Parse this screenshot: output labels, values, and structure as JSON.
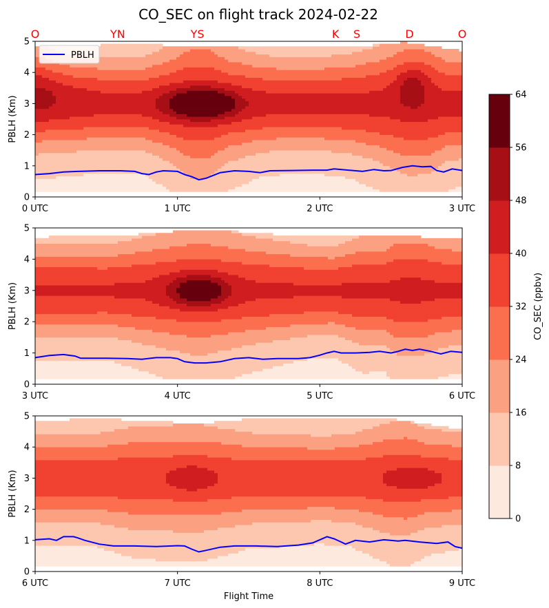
{
  "chart_data": {
    "type": "contour",
    "title": "CO_SEC on flight track 2024-02-22",
    "xlabel": "Flight Time",
    "ylabel": "PBLH (Km)",
    "legend": {
      "entries": [
        "PBLH"
      ],
      "placement": "top-left"
    },
    "location_markers": [
      {
        "label": "O",
        "x": 0.0
      },
      {
        "label": "YN",
        "x": 0.58
      },
      {
        "label": "YS",
        "x": 1.14
      },
      {
        "label": "K",
        "x": 2.11
      },
      {
        "label": "S",
        "x": 2.26
      },
      {
        "label": "D",
        "x": 2.63
      },
      {
        "label": "O",
        "x": 3.0
      }
    ],
    "colorbar": {
      "label": "CO_SEC (ppbv)",
      "levels": [
        0,
        8,
        16,
        24,
        32,
        40,
        48,
        56,
        64
      ],
      "colors": [
        "#fee9df",
        "#fdc7af",
        "#fca082",
        "#fb6e4e",
        "#f14130",
        "#d01d1f",
        "#a60f15",
        "#67000d"
      ]
    },
    "panels": [
      {
        "xlim": [
          0,
          3
        ],
        "ylim": [
          0,
          5
        ],
        "xticks": [
          {
            "v": 0,
            "label": "0 UTC"
          },
          {
            "v": 1,
            "label": "1 UTC"
          },
          {
            "v": 2,
            "label": "2 UTC"
          },
          {
            "v": 3,
            "label": "3 UTC"
          }
        ],
        "yticks": [
          0,
          1,
          2,
          3,
          4,
          5
        ],
        "baseline": 3.0,
        "bottom": 0.15,
        "band": [
          [
            0,
            4.8
          ],
          [
            0.6,
            4.9
          ],
          [
            1.2,
            4.85
          ],
          [
            2.3,
            4.85
          ],
          [
            2.6,
            4.97
          ],
          [
            3.0,
            4.7
          ]
        ],
        "bump": [
          [
            0,
            0.7
          ],
          [
            0.5,
            0.5
          ],
          [
            0.75,
            0.5
          ],
          [
            0.95,
            1.05
          ],
          [
            1.1,
            1.75
          ],
          [
            1.22,
            1.75
          ],
          [
            1.35,
            1.05
          ],
          [
            1.6,
            0.6
          ],
          [
            1.9,
            0.5
          ],
          [
            2.2,
            0.65
          ],
          [
            2.4,
            1.0
          ],
          [
            2.62,
            1.65
          ],
          [
            2.75,
            1.6
          ],
          [
            2.9,
            1.0
          ],
          [
            3.0,
            0.9
          ]
        ],
        "hotspots": [
          {
            "x": 0.02,
            "y": 4.0,
            "a": 6,
            "sx": 0.09,
            "sy": 0.9
          },
          {
            "x": 0.03,
            "y": 3.3,
            "a": 6,
            "sx": 0.22,
            "sy": 0.6
          },
          {
            "x": 1.17,
            "y": 3.0,
            "a": 36,
            "sx": 0.17,
            "sy": 0.33
          },
          {
            "x": 2.65,
            "y": 3.5,
            "a": 14,
            "sx": 0.08,
            "sy": 0.5
          }
        ],
        "pblh": [
          [
            0,
            0.72
          ],
          [
            0.1,
            0.75
          ],
          [
            0.2,
            0.8
          ],
          [
            0.3,
            0.82
          ],
          [
            0.45,
            0.84
          ],
          [
            0.6,
            0.84
          ],
          [
            0.7,
            0.82
          ],
          [
            0.75,
            0.75
          ],
          [
            0.8,
            0.72
          ],
          [
            0.85,
            0.8
          ],
          [
            0.9,
            0.84
          ],
          [
            1.0,
            0.82
          ],
          [
            1.05,
            0.72
          ],
          [
            1.1,
            0.65
          ],
          [
            1.15,
            0.55
          ],
          [
            1.2,
            0.6
          ],
          [
            1.3,
            0.78
          ],
          [
            1.4,
            0.84
          ],
          [
            1.5,
            0.82
          ],
          [
            1.58,
            0.78
          ],
          [
            1.65,
            0.84
          ],
          [
            1.8,
            0.85
          ],
          [
            1.95,
            0.86
          ],
          [
            2.05,
            0.86
          ],
          [
            2.1,
            0.9
          ],
          [
            2.2,
            0.86
          ],
          [
            2.3,
            0.82
          ],
          [
            2.38,
            0.88
          ],
          [
            2.45,
            0.84
          ],
          [
            2.5,
            0.85
          ],
          [
            2.58,
            0.95
          ],
          [
            2.65,
            1.0
          ],
          [
            2.72,
            0.97
          ],
          [
            2.78,
            0.98
          ],
          [
            2.82,
            0.85
          ],
          [
            2.87,
            0.8
          ],
          [
            2.93,
            0.9
          ],
          [
            3.0,
            0.85
          ]
        ]
      },
      {
        "xlim": [
          3,
          6
        ],
        "ylim": [
          0,
          5
        ],
        "xticks": [
          {
            "v": 3,
            "label": "3 UTC"
          },
          {
            "v": 4,
            "label": "4 UTC"
          },
          {
            "v": 5,
            "label": "5 UTC"
          },
          {
            "v": 6,
            "label": "6 UTC"
          }
        ],
        "yticks": [
          0,
          1,
          2,
          3,
          4,
          5
        ],
        "baseline": 2.9,
        "bottom": 0.15,
        "band": [
          [
            3,
            4.7
          ],
          [
            3.6,
            4.75
          ],
          [
            4.2,
            4.95
          ],
          [
            4.8,
            4.75
          ],
          [
            5.5,
            4.75
          ],
          [
            6,
            4.65
          ]
        ],
        "bump": [
          [
            3,
            0.55
          ],
          [
            3.5,
            0.5
          ],
          [
            3.8,
            0.9
          ],
          [
            4.15,
            1.4
          ],
          [
            4.5,
            0.9
          ],
          [
            4.9,
            0.5
          ],
          [
            5.1,
            0.45
          ],
          [
            5.3,
            0.9
          ],
          [
            5.45,
            0.85
          ],
          [
            5.55,
            1.4
          ],
          [
            5.7,
            1.4
          ],
          [
            5.85,
            1.0
          ],
          [
            6,
            0.9
          ]
        ],
        "hotspots": [
          {
            "x": 4.15,
            "y": 3.0,
            "a": 28,
            "sx": 0.14,
            "sy": 0.35
          },
          {
            "x": 5.65,
            "y": 3.0,
            "a": 5,
            "sx": 0.08,
            "sy": 0.2
          }
        ],
        "pblh": [
          [
            3,
            0.85
          ],
          [
            3.1,
            0.92
          ],
          [
            3.2,
            0.95
          ],
          [
            3.28,
            0.9
          ],
          [
            3.32,
            0.83
          ],
          [
            3.5,
            0.83
          ],
          [
            3.65,
            0.82
          ],
          [
            3.75,
            0.8
          ],
          [
            3.85,
            0.85
          ],
          [
            3.95,
            0.85
          ],
          [
            4.0,
            0.82
          ],
          [
            4.05,
            0.72
          ],
          [
            4.12,
            0.68
          ],
          [
            4.2,
            0.68
          ],
          [
            4.3,
            0.72
          ],
          [
            4.4,
            0.82
          ],
          [
            4.5,
            0.85
          ],
          [
            4.6,
            0.8
          ],
          [
            4.7,
            0.82
          ],
          [
            4.85,
            0.82
          ],
          [
            4.93,
            0.85
          ],
          [
            5.0,
            0.93
          ],
          [
            5.05,
            1.0
          ],
          [
            5.1,
            1.05
          ],
          [
            5.15,
            1.0
          ],
          [
            5.25,
            1.0
          ],
          [
            5.35,
            1.02
          ],
          [
            5.42,
            1.05
          ],
          [
            5.5,
            1.0
          ],
          [
            5.55,
            1.05
          ],
          [
            5.6,
            1.12
          ],
          [
            5.65,
            1.08
          ],
          [
            5.7,
            1.12
          ],
          [
            5.78,
            1.05
          ],
          [
            5.85,
            0.97
          ],
          [
            5.92,
            1.05
          ],
          [
            6.0,
            1.02
          ]
        ]
      },
      {
        "xlim": [
          6,
          9
        ],
        "ylim": [
          0,
          5
        ],
        "xticks": [
          {
            "v": 6,
            "label": "6 UTC"
          },
          {
            "v": 7,
            "label": "7 UTC"
          },
          {
            "v": 8,
            "label": "8 UTC"
          },
          {
            "v": 9,
            "label": "9 UTC"
          }
        ],
        "yticks": [
          0,
          1,
          2,
          3,
          4,
          5
        ],
        "baseline": 2.6,
        "bottom": 0.15,
        "band": [
          [
            6,
            4.85
          ],
          [
            6.5,
            4.9
          ],
          [
            7.15,
            4.75
          ],
          [
            7.5,
            4.9
          ],
          [
            8.5,
            4.9
          ],
          [
            9,
            4.55
          ]
        ],
        "bump": [
          [
            6,
            0.5
          ],
          [
            6.4,
            0.5
          ],
          [
            6.7,
            0.9
          ],
          [
            7.15,
            1.0
          ],
          [
            7.5,
            0.6
          ],
          [
            8,
            0.45
          ],
          [
            8.2,
            0.5
          ],
          [
            8.5,
            1.1
          ],
          [
            8.6,
            1.2
          ],
          [
            8.75,
            0.8
          ],
          [
            9,
            0.6
          ]
        ],
        "hotspots": [
          {
            "x": 7.1,
            "y": 3.0,
            "a": 10,
            "sx": 0.12,
            "sy": 0.3
          },
          {
            "x": 8.65,
            "y": 3.0,
            "a": 8,
            "sx": 0.15,
            "sy": 0.3
          }
        ],
        "pblh": [
          [
            6,
            1.02
          ],
          [
            6.1,
            1.05
          ],
          [
            6.15,
            1.0
          ],
          [
            6.2,
            1.12
          ],
          [
            6.27,
            1.12
          ],
          [
            6.3,
            1.08
          ],
          [
            6.35,
            1.0
          ],
          [
            6.45,
            0.88
          ],
          [
            6.55,
            0.82
          ],
          [
            6.7,
            0.82
          ],
          [
            6.85,
            0.8
          ],
          [
            7.0,
            0.83
          ],
          [
            7.05,
            0.82
          ],
          [
            7.1,
            0.72
          ],
          [
            7.15,
            0.63
          ],
          [
            7.2,
            0.68
          ],
          [
            7.3,
            0.78
          ],
          [
            7.4,
            0.82
          ],
          [
            7.55,
            0.82
          ],
          [
            7.7,
            0.8
          ],
          [
            7.85,
            0.85
          ],
          [
            7.95,
            0.92
          ],
          [
            8.0,
            1.02
          ],
          [
            8.05,
            1.12
          ],
          [
            8.1,
            1.05
          ],
          [
            8.15,
            0.95
          ],
          [
            8.18,
            0.88
          ],
          [
            8.25,
            1.0
          ],
          [
            8.35,
            0.95
          ],
          [
            8.45,
            1.02
          ],
          [
            8.55,
            0.98
          ],
          [
            8.6,
            1.0
          ],
          [
            8.7,
            0.95
          ],
          [
            8.82,
            0.9
          ],
          [
            8.9,
            0.95
          ],
          [
            8.95,
            0.8
          ],
          [
            9.0,
            0.75
          ]
        ]
      }
    ]
  }
}
